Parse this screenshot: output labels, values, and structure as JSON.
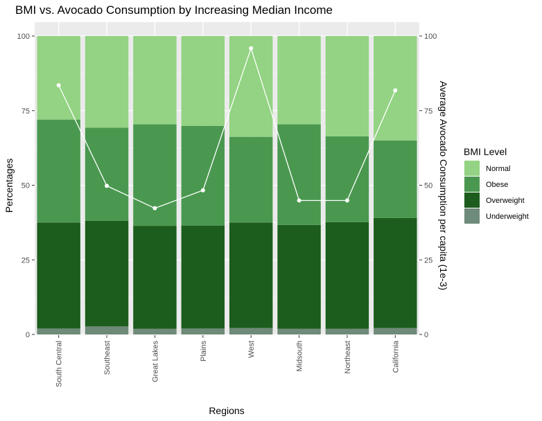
{
  "chart_data": {
    "type": "bar",
    "stacked": true,
    "title": "BMI vs. Avocado Consumption by Increasing Median Income",
    "xlabel": "Regions",
    "ylabel": "Percentages",
    "y2label": "Average Avocado Consumption per capita (1e-3)",
    "ylim": [
      0,
      100
    ],
    "y2lim": [
      0,
      100
    ],
    "yticks": [
      "0",
      "25",
      "50",
      "75",
      "100"
    ],
    "y2ticks": [
      "0",
      "25",
      "50",
      "75",
      "100"
    ],
    "categories": [
      "South Central",
      "Southeast",
      "Great Lakes",
      "Plains",
      "West",
      "Midsouth",
      "Northeast",
      "California"
    ],
    "series": [
      {
        "name": "Underweight",
        "color": "#6e8a78",
        "values": [
          2.0,
          2.7,
          1.9,
          2.0,
          2.2,
          1.9,
          1.9,
          2.2
        ]
      },
      {
        "name": "Overweight",
        "color": "#1c5c1c",
        "values": [
          35.5,
          35.4,
          34.5,
          34.5,
          35.3,
          34.8,
          35.7,
          36.8
        ]
      },
      {
        "name": "Obese",
        "color": "#4a984f",
        "values": [
          34.5,
          31.2,
          34.0,
          33.4,
          28.7,
          33.7,
          28.8,
          26.0
        ]
      },
      {
        "name": "Normal",
        "color": "#93d383",
        "values": [
          28.0,
          30.7,
          29.6,
          30.1,
          33.8,
          29.6,
          33.6,
          35.0
        ]
      }
    ],
    "line": {
      "name": "Average Avocado Consumption per capita (1e-3)",
      "color": "#ffffff",
      "values": [
        83.5,
        49.8,
        42.3,
        48.3,
        95.9,
        44.9,
        44.9,
        81.8
      ]
    },
    "legend": {
      "title": "BMI Level",
      "position": "right",
      "items": [
        {
          "label": "Normal",
          "color": "#93d383"
        },
        {
          "label": "Obese",
          "color": "#4a984f"
        },
        {
          "label": "Overweight",
          "color": "#1c5c1c"
        },
        {
          "label": "Underweight",
          "color": "#6e8a78"
        }
      ]
    },
    "panel_background": "#ebebeb",
    "grid": true
  }
}
